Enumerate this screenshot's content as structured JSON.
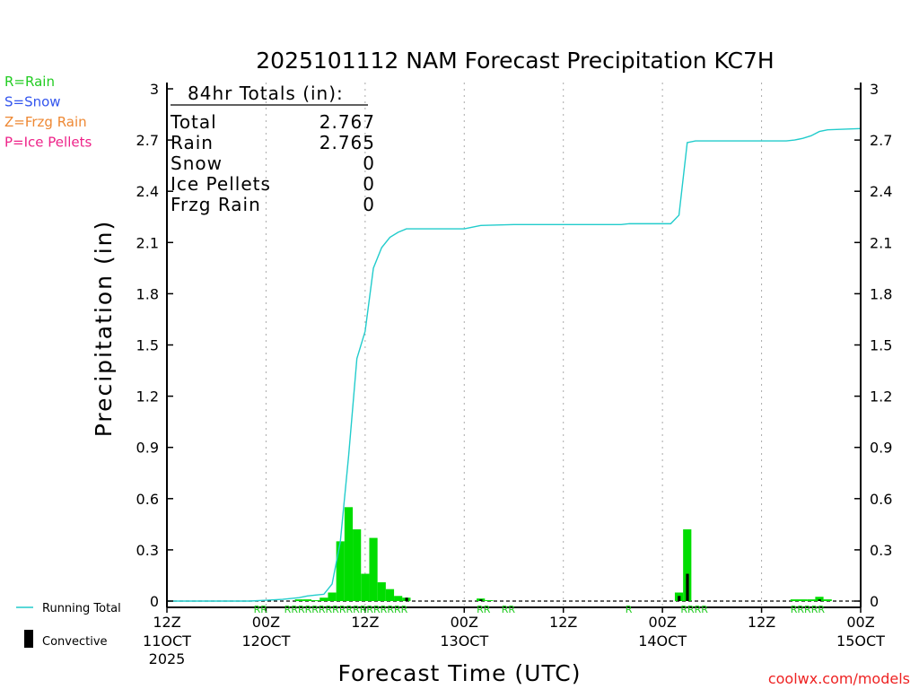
{
  "chart_data": {
    "type": "bar",
    "title": "2025101112 NAM Forecast Precipitation KC7H",
    "ylabel": "Precipitation (in)",
    "xlabel": "Forecast Time (UTC)",
    "ylim": [
      0,
      3
    ],
    "xlim_hours": [
      0,
      84
    ],
    "yticks": [
      "0",
      "0.3",
      "0.6",
      "0.9",
      "1.2",
      "1.5",
      "1.8",
      "2.1",
      "2.4",
      "2.7",
      "3"
    ],
    "xticks": [
      {
        "h": 0,
        "label": "12Z",
        "date": "11OCT",
        "year": "2025"
      },
      {
        "h": 12,
        "label": "00Z",
        "date": "12OCT",
        "year": ""
      },
      {
        "h": 24,
        "label": "12Z",
        "date": "",
        "year": ""
      },
      {
        "h": 36,
        "label": "00Z",
        "date": "13OCT",
        "year": ""
      },
      {
        "h": 48,
        "label": "12Z",
        "date": "",
        "year": ""
      },
      {
        "h": 60,
        "label": "00Z",
        "date": "14OCT",
        "year": ""
      },
      {
        "h": 72,
        "label": "12Z",
        "date": "",
        "year": ""
      },
      {
        "h": 84,
        "label": "00Z",
        "date": "15OCT",
        "year": ""
      }
    ],
    "gridlines_hours": [
      12,
      24,
      36,
      48,
      60,
      72
    ],
    "bars": [
      {
        "h": 16,
        "total": 0.01,
        "conv": 0.0
      },
      {
        "h": 17,
        "total": 0.01,
        "conv": 0.0
      },
      {
        "h": 18,
        "total": 0.005,
        "conv": 0.0
      },
      {
        "h": 19,
        "total": 0.02,
        "conv": 0.0
      },
      {
        "h": 20,
        "total": 0.05,
        "conv": 0.0
      },
      {
        "h": 21,
        "total": 0.35,
        "conv": 0.0
      },
      {
        "h": 22,
        "total": 0.55,
        "conv": 0.0
      },
      {
        "h": 23,
        "total": 0.42,
        "conv": 0.0
      },
      {
        "h": 24,
        "total": 0.16,
        "conv": 0.0
      },
      {
        "h": 25,
        "total": 0.37,
        "conv": 0.0
      },
      {
        "h": 26,
        "total": 0.11,
        "conv": 0.0
      },
      {
        "h": 27,
        "total": 0.07,
        "conv": 0.0
      },
      {
        "h": 28,
        "total": 0.03,
        "conv": 0.0
      },
      {
        "h": 29,
        "total": 0.02,
        "conv": 0.02
      },
      {
        "h": 38,
        "total": 0.015,
        "conv": 0.01
      },
      {
        "h": 39,
        "total": 0.005,
        "conv": 0.0
      },
      {
        "h": 62,
        "total": 0.05,
        "conv": 0.03
      },
      {
        "h": 63,
        "total": 0.42,
        "conv": 0.16
      },
      {
        "h": 76,
        "total": 0.01,
        "conv": 0.0
      },
      {
        "h": 77,
        "total": 0.01,
        "conv": 0.0
      },
      {
        "h": 78,
        "total": 0.01,
        "conv": 0.0
      },
      {
        "h": 79,
        "total": 0.025,
        "conv": 0.01
      },
      {
        "h": 80,
        "total": 0.01,
        "conv": 0.0
      }
    ],
    "running_total": [
      [
        0,
        0
      ],
      [
        10,
        0.0
      ],
      [
        12,
        0.005
      ],
      [
        14,
        0.01
      ],
      [
        16,
        0.02
      ],
      [
        17,
        0.03
      ],
      [
        18,
        0.035
      ],
      [
        19,
        0.04
      ],
      [
        20,
        0.1
      ],
      [
        21,
        0.35
      ],
      [
        22,
        0.85
      ],
      [
        23,
        1.42
      ],
      [
        24,
        1.58
      ],
      [
        25,
        1.95
      ],
      [
        26,
        2.07
      ],
      [
        27,
        2.13
      ],
      [
        28,
        2.16
      ],
      [
        29,
        2.18
      ],
      [
        30,
        2.18
      ],
      [
        36,
        2.18
      ],
      [
        37,
        2.19
      ],
      [
        38,
        2.2
      ],
      [
        42,
        2.205
      ],
      [
        48,
        2.205
      ],
      [
        55,
        2.205
      ],
      [
        56,
        2.21
      ],
      [
        61,
        2.21
      ],
      [
        62,
        2.26
      ],
      [
        63,
        2.685
      ],
      [
        64,
        2.695
      ],
      [
        75,
        2.695
      ],
      [
        76,
        2.7
      ],
      [
        77,
        2.71
      ],
      [
        78,
        2.725
      ],
      [
        79,
        2.75
      ],
      [
        80,
        2.76
      ],
      [
        84,
        2.767
      ]
    ],
    "ptype_markers": [
      {
        "h": 10.5,
        "text": "RR"
      },
      {
        "h": 14.2,
        "text": "RRRRRRRRRRRRRRRRRR"
      },
      {
        "h": 37.5,
        "text": "RR"
      },
      {
        "h": 40.5,
        "text": "RR"
      },
      {
        "h": 55.5,
        "text": "R"
      },
      {
        "h": 62.2,
        "text": "RRRR"
      },
      {
        "h": 75.5,
        "text": "RRRRR"
      }
    ],
    "totals_box": {
      "header": "84hr Totals (in):",
      "rows": [
        {
          "label": "Total",
          "value": "2.767"
        },
        {
          "label": "Rain",
          "value": "2.765"
        },
        {
          "label": "Snow",
          "value": "0"
        },
        {
          "label": "Ice Pellets",
          "value": "0"
        },
        {
          "label": "Frzg Rain",
          "value": "0"
        }
      ]
    },
    "ptype_legend": [
      {
        "text": "R=Rain",
        "color": "#22cc22"
      },
      {
        "text": "S=Snow",
        "color": "#3355ee"
      },
      {
        "text": "Z=Frzg Rain",
        "color": "#ee8833"
      },
      {
        "text": "P=Ice Pellets",
        "color": "#ee2288"
      }
    ],
    "series_legend": {
      "running": "Running Total",
      "convective": "Convective"
    },
    "credit": "coolwx.com/models",
    "colors": {
      "bar": "#00dd00",
      "convective": "#000000",
      "running": "#22cccc",
      "marker": "#22cc22",
      "credit": "#ee2222"
    }
  }
}
